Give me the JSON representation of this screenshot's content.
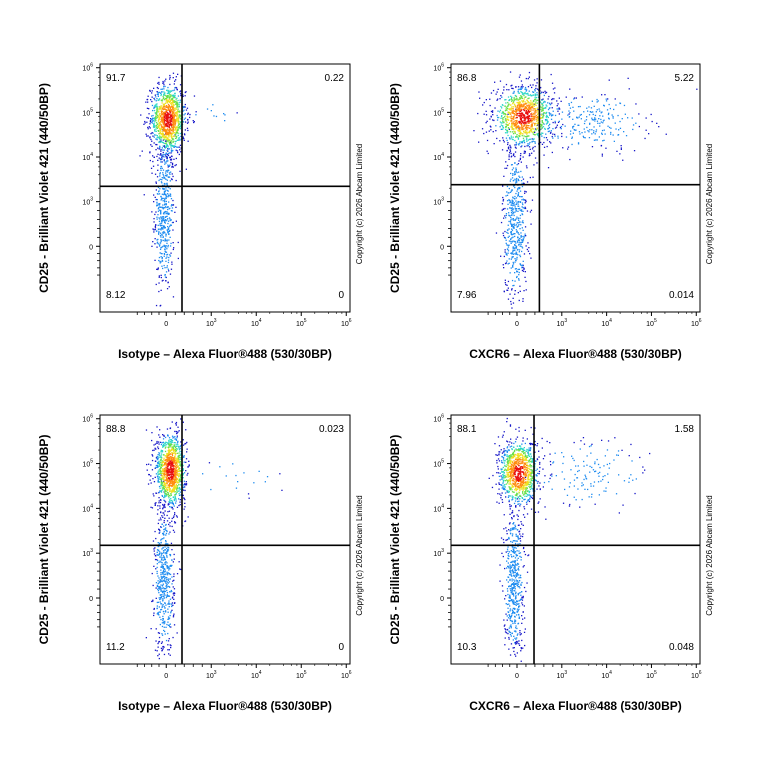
{
  "chart_data": [
    {
      "type": "scatter",
      "xlabel": "Isotype – Alexa Fluor®488 (530/30BP)",
      "ylabel": "CD25 - Brilliant Violet 421  (440/50BP)",
      "quadrants": {
        "upper_left": "91.7",
        "upper_right": "0.22",
        "lower_left": "8.12",
        "lower_right": "0"
      },
      "gate": {
        "x": 350,
        "y": 2200
      },
      "copyright": "Copyright (c) 2026 Abcam Limited",
      "x_ticks": [
        "0",
        "10",
        "10",
        "10",
        "10"
      ],
      "x_tick_exps": [
        "",
        "3",
        "4",
        "5",
        "6"
      ],
      "y_ticks": [
        "0",
        "10",
        "10",
        "10",
        "10"
      ],
      "y_tick_exps": [
        "",
        "3",
        "4",
        "5",
        "6"
      ]
    },
    {
      "type": "scatter",
      "xlabel": "CXCR6 – Alexa Fluor®488 (530/30BP)",
      "ylabel": "CD25 - Brilliant Violet 421  (440/50BP)",
      "quadrants": {
        "upper_left": "86.8",
        "upper_right": "5.22",
        "lower_left": "7.96",
        "lower_right": "0.014"
      },
      "gate": {
        "x": 500,
        "y": 2400
      },
      "copyright": "Copyright (c) 2026 Abcam Limited",
      "x_ticks": [
        "0",
        "10",
        "10",
        "10",
        "10"
      ],
      "x_tick_exps": [
        "",
        "3",
        "4",
        "5",
        "6"
      ],
      "y_ticks": [
        "0",
        "10",
        "10",
        "10",
        "10"
      ],
      "y_tick_exps": [
        "",
        "3",
        "4",
        "5",
        "6"
      ]
    },
    {
      "type": "scatter",
      "xlabel": "Isotype – Alexa Fluor®488 (530/30BP)",
      "ylabel": "CD25 - Brilliant Violet 421  (440/50BP)",
      "quadrants": {
        "upper_left": "88.8",
        "upper_right": "0.023",
        "lower_left": "11.2",
        "lower_right": "0"
      },
      "gate": {
        "x": 350,
        "y": 1500
      },
      "copyright": "Copyright (c) 2026 Abcam Limited",
      "x_ticks": [
        "0",
        "10",
        "10",
        "10",
        "10"
      ],
      "x_tick_exps": [
        "",
        "3",
        "4",
        "5",
        "6"
      ],
      "y_ticks": [
        "0",
        "10",
        "10",
        "10",
        "10"
      ],
      "y_tick_exps": [
        "",
        "3",
        "4",
        "5",
        "6"
      ]
    },
    {
      "type": "scatter",
      "xlabel": "CXCR6 – Alexa Fluor®488 (530/30BP)",
      "ylabel": "CD25 - Brilliant Violet 421  (440/50BP)",
      "quadrants": {
        "upper_left": "88.1",
        "upper_right": "1.58",
        "lower_left": "10.3",
        "lower_right": "0.048"
      },
      "gate": {
        "x": 380,
        "y": 1500
      },
      "copyright": "Copyright (c) 2026 Abcam Limited",
      "x_ticks": [
        "0",
        "10",
        "10",
        "10",
        "10"
      ],
      "x_tick_exps": [
        "",
        "3",
        "4",
        "5",
        "6"
      ],
      "y_ticks": [
        "0",
        "10",
        "10",
        "10",
        "10"
      ],
      "y_tick_exps": [
        "",
        "3",
        "4",
        "5",
        "6"
      ]
    }
  ]
}
